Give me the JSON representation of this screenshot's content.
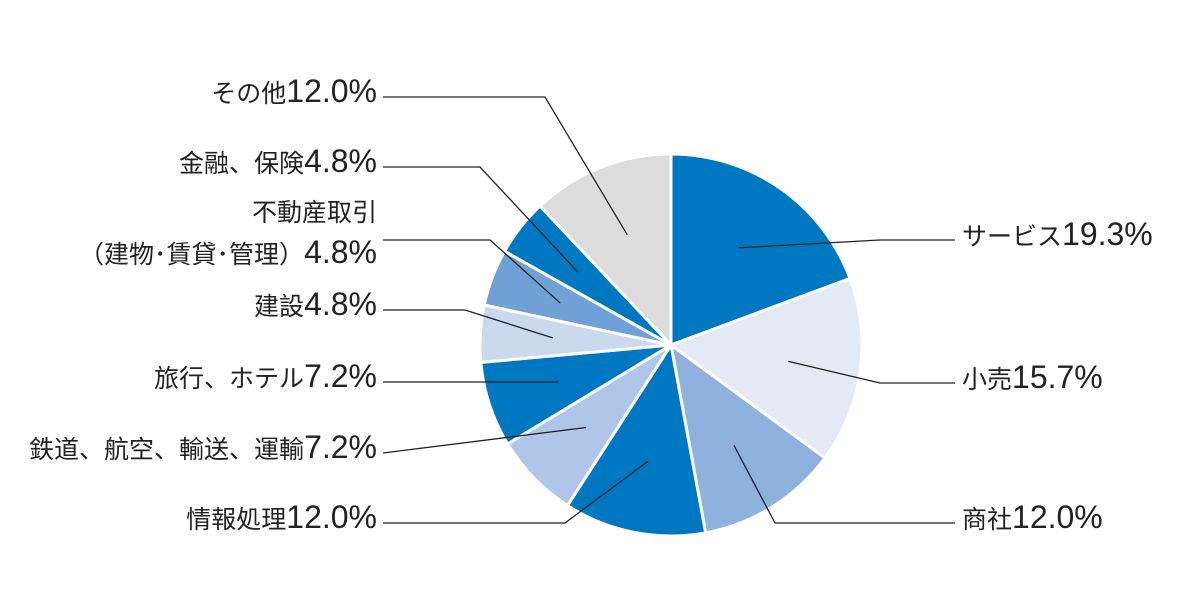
{
  "chart_data": {
    "type": "pie",
    "categories": [
      "サービス",
      "小売",
      "商社",
      "情報処理",
      "鉄道、航空、輸送、運輸",
      "旅行、ホテル",
      "建設",
      "不動産取引\n（建物･賃貸･管理）",
      "金融、保険",
      "その他"
    ],
    "values": [
      19.3,
      15.7,
      12.0,
      12.0,
      7.2,
      7.2,
      4.8,
      4.8,
      4.8,
      12.0
    ],
    "value_labels": [
      "19.3%",
      "15.7%",
      "12.0%",
      "12.0%",
      "7.2%",
      "7.2%",
      "4.8%",
      "4.8%",
      "4.8%",
      "12.0%"
    ],
    "colors": [
      "#0077c1",
      "#e3eaf6",
      "#8fb1dd",
      "#0077c1",
      "#afc6e8",
      "#0077c1",
      "#cbd9ef",
      "#6fa0d6",
      "#0077c1",
      "#dcdcdc"
    ]
  }
}
